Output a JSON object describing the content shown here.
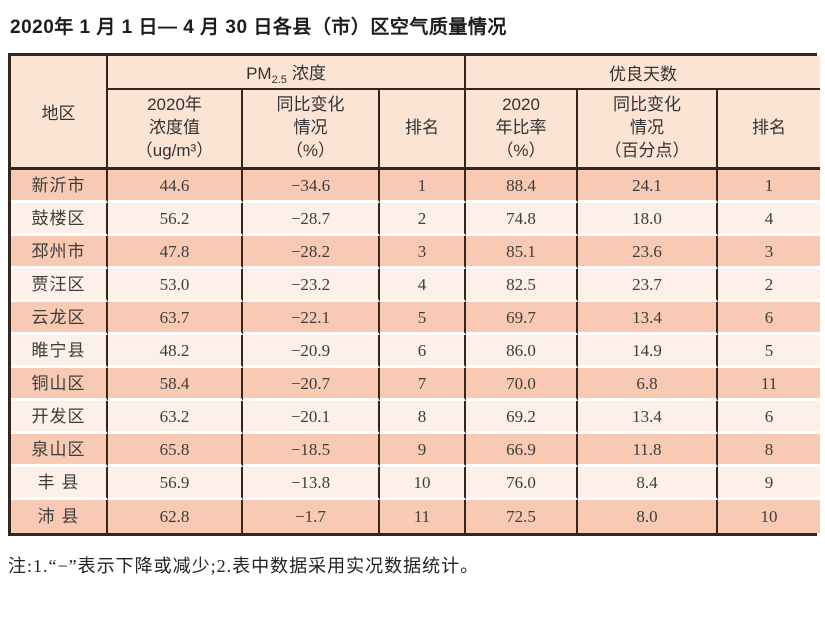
{
  "title": "2020年 1 月 1 日— 4 月 30 日各县（市）区空气质量情况",
  "table": {
    "region_header": "地区",
    "group_pm": {
      "prefix": "PM",
      "sub": "2.5",
      "suffix": "浓度"
    },
    "group_days": "优良天数",
    "sub_headers": {
      "pm_value": "2020年\n浓度值\n（ug/m³）",
      "pm_change": "同比变化\n情况\n（%）",
      "pm_rank": "排名",
      "days_rate": "2020\n年比率\n（%）",
      "days_change": "同比变化\n情况\n（百分点）",
      "days_rank": "排名"
    },
    "rows": [
      {
        "region": "新沂市",
        "pm_value": "44.6",
        "pm_change": "−34.6",
        "pm_rank": "1",
        "days_rate": "88.4",
        "days_change": "24.1",
        "days_rank": "1"
      },
      {
        "region": "鼓楼区",
        "pm_value": "56.2",
        "pm_change": "−28.7",
        "pm_rank": "2",
        "days_rate": "74.8",
        "days_change": "18.0",
        "days_rank": "4"
      },
      {
        "region": "邳州市",
        "pm_value": "47.8",
        "pm_change": "−28.2",
        "pm_rank": "3",
        "days_rate": "85.1",
        "days_change": "23.6",
        "days_rank": "3"
      },
      {
        "region": "贾汪区",
        "pm_value": "53.0",
        "pm_change": "−23.2",
        "pm_rank": "4",
        "days_rate": "82.5",
        "days_change": "23.7",
        "days_rank": "2"
      },
      {
        "region": "云龙区",
        "pm_value": "63.7",
        "pm_change": "−22.1",
        "pm_rank": "5",
        "days_rate": "69.7",
        "days_change": "13.4",
        "days_rank": "6"
      },
      {
        "region": "睢宁县",
        "pm_value": "48.2",
        "pm_change": "−20.9",
        "pm_rank": "6",
        "days_rate": "86.0",
        "days_change": "14.9",
        "days_rank": "5"
      },
      {
        "region": "铜山区",
        "pm_value": "58.4",
        "pm_change": "−20.7",
        "pm_rank": "7",
        "days_rate": "70.0",
        "days_change": "6.8",
        "days_rank": "11"
      },
      {
        "region": "开发区",
        "pm_value": "63.2",
        "pm_change": "−20.1",
        "pm_rank": "8",
        "days_rate": "69.2",
        "days_change": "13.4",
        "days_rank": "6"
      },
      {
        "region": "泉山区",
        "pm_value": "65.8",
        "pm_change": "−18.5",
        "pm_rank": "9",
        "days_rate": "66.9",
        "days_change": "11.8",
        "days_rank": "8"
      },
      {
        "region": "丰 县",
        "pm_value": "56.9",
        "pm_change": "−13.8",
        "pm_rank": "10",
        "days_rate": "76.0",
        "days_change": "8.4",
        "days_rank": "9"
      },
      {
        "region": "沛 县",
        "pm_value": "62.8",
        "pm_change": "−1.7",
        "pm_rank": "11",
        "days_rate": "72.5",
        "days_change": "8.0",
        "days_rank": "10"
      }
    ]
  },
  "note": "注:1.“−”表示下降或减少;2.表中数据采用实况数据统计。"
}
